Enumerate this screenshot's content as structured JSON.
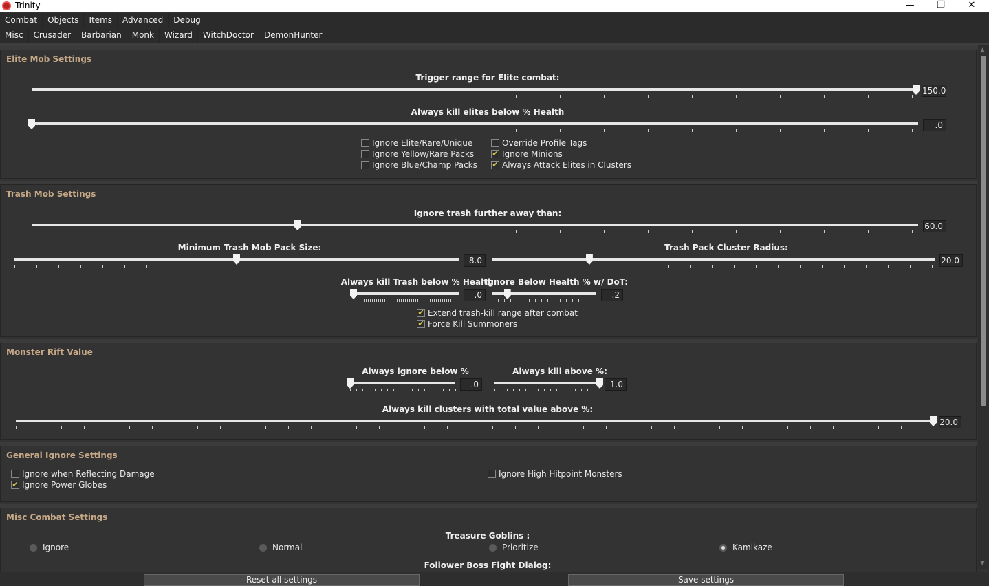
{
  "window": {
    "title": "Trinity",
    "minimize": "—",
    "maximize": "❐",
    "close": "✕",
    "icon": "trinity-logo-icon"
  },
  "menu": [
    "Combat",
    "Objects",
    "Items",
    "Advanced",
    "Debug"
  ],
  "tabs": [
    "Misc",
    "Crusader",
    "Barbarian",
    "Monk",
    "Wizard",
    "WitchDoctor",
    "DemonHunter"
  ],
  "colors": {
    "section_title": "#c6a887",
    "check": "#d9c24a",
    "background": "#333333"
  },
  "elite": {
    "title": "Elite Mob Settings",
    "checkboxes": [
      {
        "label": "Ignore Elite/Rare/Unique",
        "checked": false
      },
      {
        "label": "Ignore Yellow/Rare Packs",
        "checked": false
      },
      {
        "label": "Ignore Blue/Champ Packs",
        "checked": false
      },
      {
        "label": "Override Profile Tags",
        "checked": false
      },
      {
        "label": "Ignore Minions",
        "checked": true
      },
      {
        "label": "Always Attack Elites in Clusters",
        "checked": true
      }
    ]
  },
  "trash": {
    "title": "Trash Mob Settings",
    "checkboxes": [
      {
        "label": "Extend trash-kill range after combat",
        "checked": true
      },
      {
        "label": "Force Kill Summoners",
        "checked": true
      }
    ]
  },
  "rift": {
    "title": "Monster Rift Value"
  },
  "general": {
    "title": "General Ignore Settings",
    "checkboxes": [
      {
        "label": "Ignore when Reflecting Damage",
        "checked": false
      },
      {
        "label": "Ignore Power Globes",
        "checked": true
      },
      {
        "label": "Ignore High Hitpoint Monsters",
        "checked": false
      }
    ]
  },
  "misc": {
    "title": "Misc Combat Settings",
    "goblins_label": "Treasure Goblins :",
    "follower_label": "Follower Boss Fight Dialog:",
    "goblin_options": [
      {
        "label": "Ignore",
        "selected": false
      },
      {
        "label": "Normal",
        "selected": false
      },
      {
        "label": "Prioritize",
        "selected": false
      },
      {
        "label": "Kamikaze",
        "selected": true
      }
    ]
  },
  "sliders": [
    {
      "label": "Trigger range for Elite combat:",
      "value": "150.0",
      "level": 1.0
    },
    {
      "label": "Always kill elites below % Health",
      "value": ".0",
      "level": 0
    },
    {
      "label": "Ignore trash further away than:",
      "value": "60.0",
      "level": 0.3
    },
    {
      "label": "Minimum Trash Mob Pack Size:",
      "value": "8.0",
      "level": 0.5
    },
    {
      "label": "Trash Pack Cluster Radius:",
      "value": "20.0",
      "level": 0.22
    },
    {
      "label": "Always kill Trash below % Health:",
      "value": ".0",
      "level": 0
    },
    {
      "label": "Ignore Below Health % w/ DoT:",
      "value": ".2",
      "level": 0.15
    },
    {
      "label": "Always ignore below %",
      "value": ".0",
      "level": 0
    },
    {
      "label": "Always kill above %:",
      "value": "1.0",
      "level": 1.0
    },
    {
      "label": "Always kill clusters with total value above %:",
      "value": "20.0",
      "level": 1.0
    }
  ],
  "buttons": {
    "reset": "Reset all settings",
    "save": "Save settings"
  }
}
